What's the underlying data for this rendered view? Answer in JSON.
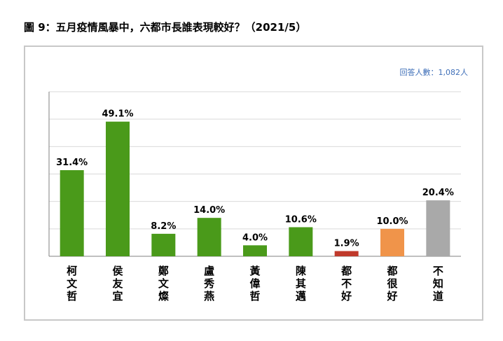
{
  "title": "圖 9：五月疫情風暴中，六都市長誰表現較好？（2021/5）",
  "note": "回答人數：1,082人",
  "colors": {
    "green": "#4a9a1a",
    "red": "#c0392b",
    "orange": "#f0944a",
    "gray": "#a9a9a9",
    "grid": "#d9d9d9",
    "axis": "#808080"
  },
  "chart_data": {
    "type": "bar",
    "ylim": [
      0,
      60
    ],
    "grid": true,
    "categories": [
      "柯文哲",
      "侯友宜",
      "鄭文燦",
      "盧秀燕",
      "黃偉哲",
      "陳其邁",
      "都不好",
      "都很好",
      "不知道"
    ],
    "values": [
      31.4,
      49.1,
      8.2,
      14.0,
      4.0,
      10.6,
      1.9,
      10.0,
      20.4
    ],
    "value_labels": [
      "31.4%",
      "49.1%",
      "8.2%",
      "14.0%",
      "4.0%",
      "10.6%",
      "1.9%",
      "10.0%",
      "20.4%"
    ],
    "bar_colors": [
      "green",
      "green",
      "green",
      "green",
      "green",
      "green",
      "red",
      "orange",
      "gray"
    ]
  }
}
